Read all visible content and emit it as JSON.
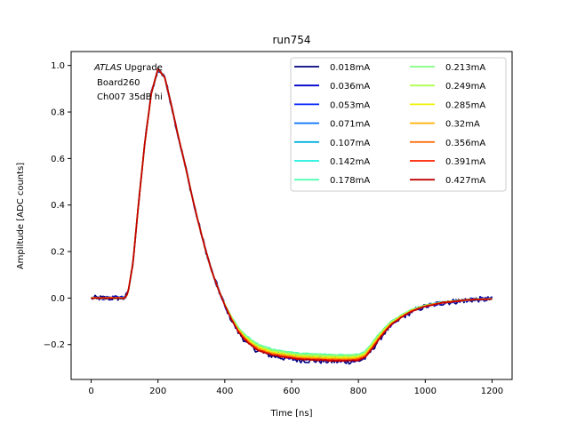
{
  "chart_data": {
    "type": "line",
    "title": "run754",
    "xlabel": "Time [ns]",
    "ylabel": "Amplitude [ADC counts]",
    "xlim": [
      -60,
      1260
    ],
    "ylim": [
      -0.35,
      1.06
    ],
    "xticks": [
      0,
      200,
      400,
      600,
      800,
      1000,
      1200
    ],
    "yticks": [
      -0.2,
      0.0,
      0.2,
      0.4,
      0.6,
      0.8,
      1.0
    ],
    "xtick_labels": [
      "0",
      "200",
      "400",
      "600",
      "800",
      "1000",
      "1200"
    ],
    "ytick_labels": [
      "−0.2",
      "0.0",
      "0.2",
      "0.4",
      "0.6",
      "0.8",
      "1.0"
    ],
    "grid": false,
    "legend_position": "top-right",
    "legend_columns": 2,
    "annotation": {
      "italic": "ATLAS",
      "line1_rest": " Upgrade",
      "line2": "Board260",
      "line3": "Ch007 35dB hi"
    },
    "pulse_shape": {
      "x": [
        0,
        100,
        110,
        125,
        140,
        160,
        180,
        200,
        220,
        240,
        260,
        280,
        300,
        320,
        340,
        360,
        380,
        400,
        420,
        440,
        460,
        480,
        500,
        540,
        580,
        620,
        680,
        740,
        780,
        800,
        820,
        840,
        860,
        880,
        900,
        930,
        960,
        1000,
        1050,
        1100,
        1150,
        1200
      ],
      "y": [
        0.0,
        0.0,
        0.02,
        0.15,
        0.38,
        0.66,
        0.88,
        0.985,
        0.95,
        0.83,
        0.7,
        0.58,
        0.45,
        0.33,
        0.22,
        0.12,
        0.04,
        -0.03,
        -0.09,
        -0.14,
        -0.175,
        -0.2,
        -0.22,
        -0.24,
        -0.25,
        -0.258,
        -0.262,
        -0.265,
        -0.264,
        -0.262,
        -0.25,
        -0.215,
        -0.175,
        -0.14,
        -0.11,
        -0.08,
        -0.055,
        -0.035,
        -0.02,
        -0.012,
        -0.006,
        -0.004
      ]
    },
    "series": [
      {
        "name": "0.018mA",
        "color": "#000080",
        "noise": 0.012,
        "offset": -0.008
      },
      {
        "name": "0.036mA",
        "color": "#0000d0",
        "noise": 0.008,
        "offset": -0.002
      },
      {
        "name": "0.053mA",
        "color": "#0020ff",
        "noise": 0.005,
        "offset": 0.004
      },
      {
        "name": "0.071mA",
        "color": "#0070ff",
        "noise": 0.004,
        "offset": 0.009
      },
      {
        "name": "0.107mA",
        "color": "#00b0e0",
        "noise": 0.003,
        "offset": 0.014
      },
      {
        "name": "0.142mA",
        "color": "#20f0e0",
        "noise": 0.003,
        "offset": 0.018
      },
      {
        "name": "0.178mA",
        "color": "#50ffb0",
        "noise": 0.002,
        "offset": 0.021
      },
      {
        "name": "0.213mA",
        "color": "#80ff80",
        "noise": 0.002,
        "offset": 0.018
      },
      {
        "name": "0.249mA",
        "color": "#b0ff50",
        "noise": 0.002,
        "offset": 0.013
      },
      {
        "name": "0.285mA",
        "color": "#f0f000",
        "noise": 0.002,
        "offset": 0.008
      },
      {
        "name": "0.32mA",
        "color": "#ffb000",
        "noise": 0.002,
        "offset": 0.004
      },
      {
        "name": "0.356mA",
        "color": "#ff7010",
        "noise": 0.002,
        "offset": 0.0
      },
      {
        "name": "0.391mA",
        "color": "#ff2000",
        "noise": 0.002,
        "offset": -0.003
      },
      {
        "name": "0.427mA",
        "color": "#c00000",
        "noise": 0.002,
        "offset": -0.005
      }
    ]
  }
}
